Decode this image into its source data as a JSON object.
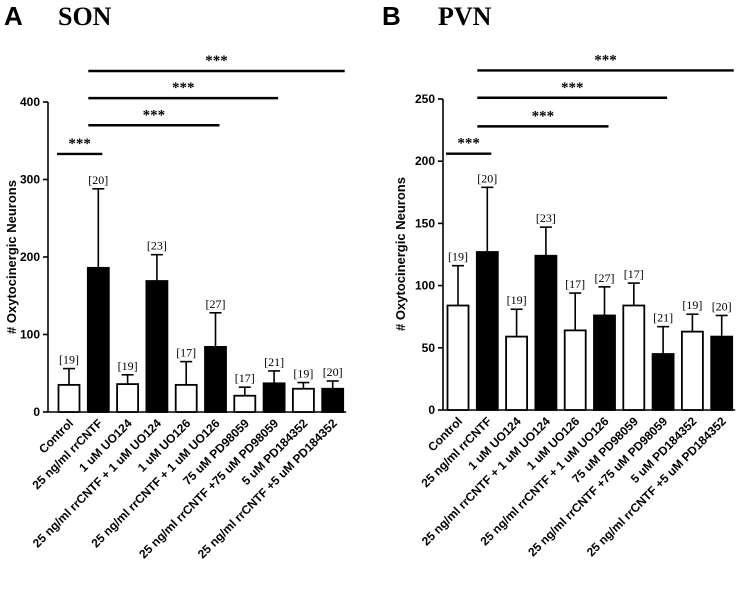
{
  "chart_data": [
    {
      "type": "bar",
      "panel": "A",
      "title": "SON",
      "ylabel": "# Oxytocinergic Neurons",
      "xlabel": "",
      "ylim": [
        0,
        400
      ],
      "yticks": [
        0,
        100,
        200,
        300,
        400
      ],
      "categories": [
        "Control",
        "25 ng/ml rrCNTF",
        "1 uM UO124",
        "25 ng/ml rrCNTF + 1 uM UO124",
        "1 uM UO126",
        "25 ng/ml rrCNTF + 1 uM UO126",
        "75 uM PD98059",
        "25 ng/ml rrCNTF +75 uM PD98059",
        "5 uM PD184352",
        "25 ng/ml rrCNTF +5 uM PD184352"
      ],
      "values": [
        35,
        186,
        36,
        169,
        35,
        84,
        21,
        37,
        30,
        30
      ],
      "errors": [
        21,
        102,
        12,
        34,
        30,
        44,
        11,
        16,
        8,
        10
      ],
      "n_labels": [
        "[19]",
        "[20]",
        "[19]",
        "[23]",
        "[17]",
        "[27]",
        "[17]",
        "[21]",
        "[19]",
        "[20]"
      ],
      "fills": [
        "white",
        "black",
        "white",
        "black",
        "white",
        "black",
        "white",
        "black",
        "white",
        "black"
      ],
      "significance": [
        {
          "from": 0,
          "to": 1,
          "label": "***",
          "y": 333
        },
        {
          "from": 1,
          "to": 5,
          "label": "***",
          "y": 370
        },
        {
          "from": 1,
          "to": 7,
          "label": "***",
          "y": 405
        },
        {
          "from": 1,
          "to": 9,
          "label": "***",
          "y": 440
        }
      ]
    },
    {
      "type": "bar",
      "panel": "B",
      "title": "PVN",
      "ylabel": "# Oxytocinergic Neurons",
      "xlabel": "",
      "ylim": [
        0,
        250
      ],
      "yticks": [
        0,
        50,
        100,
        150,
        200,
        250
      ],
      "categories": [
        "Control",
        "25 ng/ml rrCNTF",
        "1 uM UO124",
        "25 ng/ml rrCNTF + 1 uM UO124",
        "1 uM UO126",
        "25 ng/ml rrCNTF + 1 uM UO126",
        "75 uM PD98059",
        "25 ng/ml rrCNTF +75 uM PD98059",
        "5 uM PD184352",
        "25 ng/ml rrCNTF +5 uM PD184352"
      ],
      "values": [
        84,
        127,
        59,
        124,
        64,
        76,
        84,
        45,
        63,
        59
      ],
      "errors": [
        32,
        52,
        22,
        23,
        30,
        23,
        18,
        22,
        14,
        17
      ],
      "n_labels": [
        "[19]",
        "[20]",
        "[19]",
        "[23]",
        "[17]",
        "[27]",
        "[17]",
        "[21]",
        "[19]",
        "[20]"
      ],
      "fills": [
        "white",
        "black",
        "white",
        "black",
        "white",
        "black",
        "white",
        "black",
        "white",
        "black"
      ],
      "significance": [
        {
          "from": 0,
          "to": 1,
          "label": "***",
          "y": 206
        },
        {
          "from": 1,
          "to": 5,
          "label": "***",
          "y": 228
        },
        {
          "from": 1,
          "to": 7,
          "label": "***",
          "y": 251
        },
        {
          "from": 1,
          "to": 9,
          "label": "***",
          "y": 273
        }
      ]
    }
  ]
}
